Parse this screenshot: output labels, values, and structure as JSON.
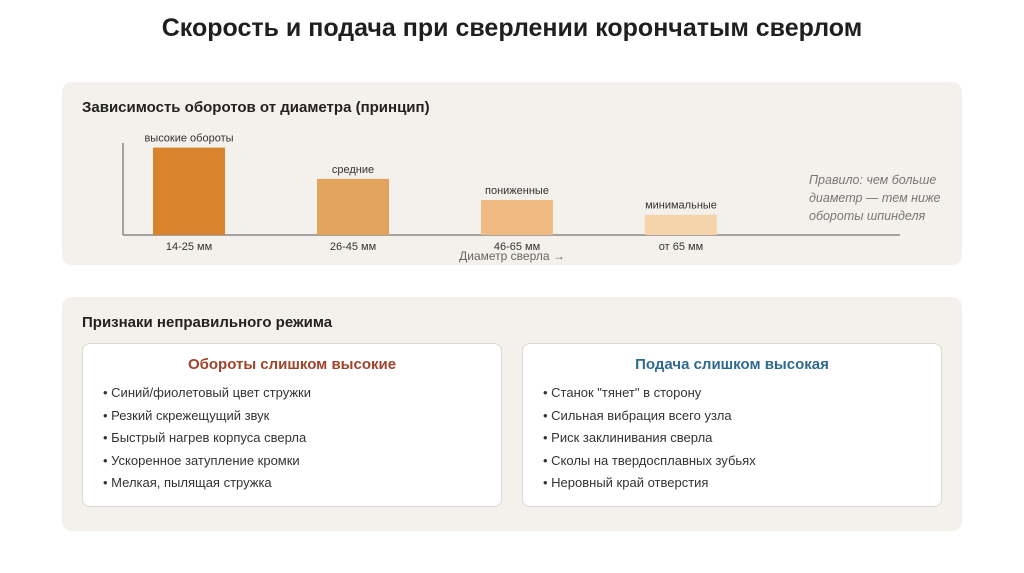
{
  "title": "Скорость и подача при сверлении корончатым сверлом",
  "chart_data": {
    "type": "bar",
    "title": "Зависимость оборотов от диаметра (принцип)",
    "categories": [
      "14-25 мм",
      "26-45 мм",
      "46-65 мм",
      "от 65 мм"
    ],
    "values": [
      95,
      61,
      38,
      22
    ],
    "value_labels": [
      "высокие обороты",
      "средние",
      "пониженные",
      "минимальные"
    ],
    "colors": [
      "#d9832c",
      "#e3a35c",
      "#f0bb82",
      "#f5d3ab"
    ],
    "ylim": [
      0,
      100
    ],
    "xlabel": "Диаметр сверла →",
    "note": "Правило: чем больше диаметр — тем ниже обороты шпинделя"
  },
  "signs": {
    "title": "Признаки неправильного режима",
    "cards": [
      {
        "title": "Обороты слишком высокие",
        "color": "#a0432a",
        "items": [
          "Синий/фиолетовый цвет стружки",
          "Резкий скрежещущий звук",
          "Быстрый нагрев корпуса сверла",
          "Ускоренное затупление кромки",
          "Мелкая, пылящая стружка"
        ]
      },
      {
        "title": "Подача слишком высокая",
        "color": "#2f6b8f",
        "items": [
          "Станок \"тянет\" в сторону",
          "Сильная вибрация всего узла",
          "Риск заклинивания сверла",
          "Сколы на твердосплавных зубьях",
          "Неровный край отверстия"
        ]
      }
    ]
  }
}
